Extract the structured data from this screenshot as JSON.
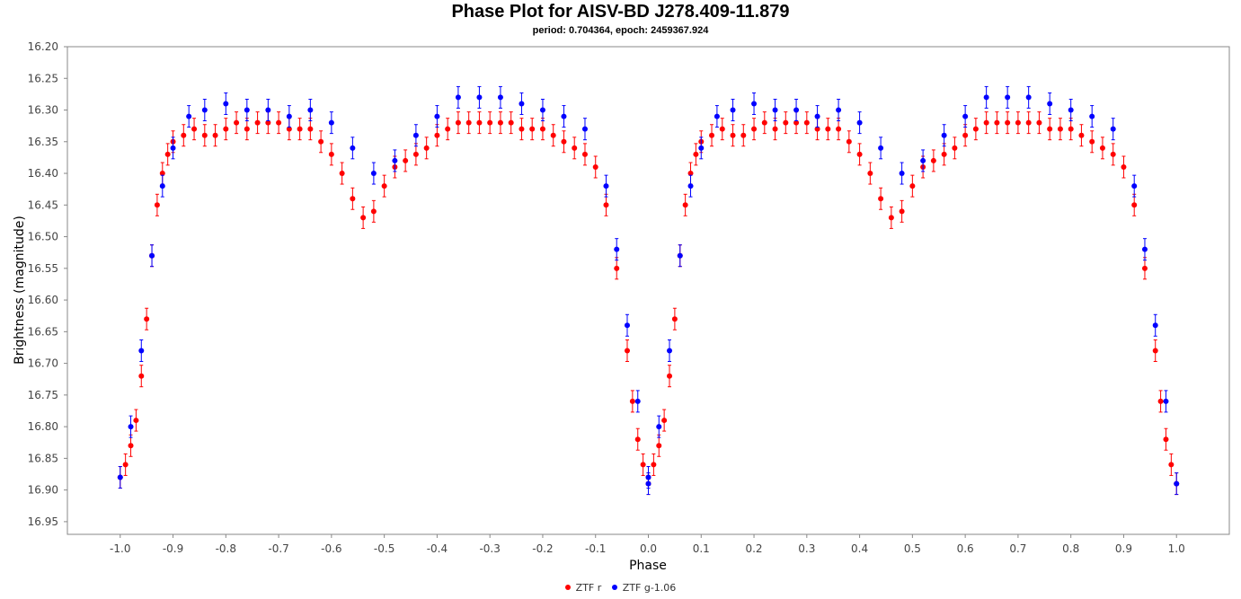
{
  "chart_data": {
    "type": "scatter",
    "title": "Phase Plot for AISV-BD J278.409-11.879",
    "subtitle": "period: 0.704364, epoch: 2459367.924",
    "xlabel": "Phase",
    "ylabel": "Brightness (magnitude)",
    "xlim": [
      -1.1,
      1.1
    ],
    "ylim": [
      16.2,
      16.97
    ],
    "y_inverted": true,
    "x_ticks": [
      "-1.0",
      "-0.9",
      "-0.8",
      "-0.7",
      "-0.6",
      "-0.5",
      "-0.4",
      "-0.3",
      "-0.2",
      "-0.1",
      "0.0",
      "0.1",
      "0.2",
      "0.3",
      "0.4",
      "0.5",
      "0.6",
      "0.7",
      "0.8",
      "0.9",
      "1.0"
    ],
    "y_ticks": [
      "16.20",
      "16.25",
      "16.30",
      "16.35",
      "16.40",
      "16.45",
      "16.50",
      "16.55",
      "16.60",
      "16.65",
      "16.70",
      "16.75",
      "16.80",
      "16.85",
      "16.90",
      "16.95"
    ],
    "grid": false,
    "legend_position": "bottom",
    "error_bars": true,
    "series": [
      {
        "name": "ZTF r",
        "color": "#ff0000",
        "x": [
          0.0,
          0.01,
          0.02,
          0.03,
          0.04,
          0.05,
          0.06,
          0.07,
          0.08,
          0.09,
          0.1,
          0.12,
          0.14,
          0.16,
          0.18,
          0.2,
          0.22,
          0.24,
          0.26,
          0.28,
          0.3,
          0.32,
          0.34,
          0.36,
          0.38,
          0.4,
          0.42,
          0.44,
          0.46,
          0.48,
          0.5,
          0.52,
          0.54,
          0.56,
          0.58,
          0.6,
          0.62,
          0.64,
          0.66,
          0.68,
          0.7,
          0.72,
          0.74,
          0.76,
          0.78,
          0.8,
          0.82,
          0.84,
          0.86,
          0.88,
          0.9,
          0.92,
          0.94,
          0.96,
          0.97,
          0.98,
          0.99,
          1.0
        ],
        "y": [
          16.88,
          16.86,
          16.83,
          16.79,
          16.72,
          16.63,
          16.53,
          16.45,
          16.4,
          16.37,
          16.35,
          16.34,
          16.33,
          16.34,
          16.34,
          16.33,
          16.32,
          16.33,
          16.32,
          16.32,
          16.32,
          16.33,
          16.33,
          16.33,
          16.35,
          16.37,
          16.4,
          16.44,
          16.47,
          16.46,
          16.42,
          16.39,
          16.38,
          16.37,
          16.36,
          16.34,
          16.33,
          16.32,
          16.32,
          16.32,
          16.32,
          16.32,
          16.32,
          16.33,
          16.33,
          16.33,
          16.34,
          16.35,
          16.36,
          16.37,
          16.39,
          16.45,
          16.55,
          16.68,
          16.76,
          16.82,
          16.86,
          16.89
        ]
      },
      {
        "name": "ZTF g-1.06",
        "color": "#0000ff",
        "x": [
          0.0,
          0.02,
          0.04,
          0.06,
          0.08,
          0.1,
          0.13,
          0.16,
          0.2,
          0.24,
          0.28,
          0.32,
          0.36,
          0.4,
          0.44,
          0.48,
          0.52,
          0.56,
          0.6,
          0.64,
          0.68,
          0.72,
          0.76,
          0.8,
          0.84,
          0.88,
          0.92,
          0.94,
          0.96,
          0.98,
          1.0
        ],
        "y": [
          16.88,
          16.8,
          16.68,
          16.53,
          16.42,
          16.36,
          16.31,
          16.3,
          16.29,
          16.3,
          16.3,
          16.31,
          16.3,
          16.32,
          16.36,
          16.4,
          16.38,
          16.34,
          16.31,
          16.28,
          16.28,
          16.28,
          16.29,
          16.3,
          16.31,
          16.33,
          16.42,
          16.52,
          16.64,
          16.76,
          16.89
        ]
      }
    ]
  }
}
